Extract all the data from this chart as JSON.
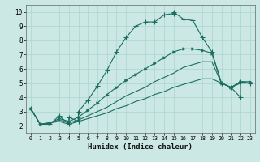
{
  "xlabel": "Humidex (Indice chaleur)",
  "xlim": [
    -0.5,
    23.5
  ],
  "ylim": [
    1.5,
    10.5
  ],
  "xticks": [
    0,
    1,
    2,
    3,
    4,
    5,
    6,
    7,
    8,
    9,
    10,
    11,
    12,
    13,
    14,
    15,
    16,
    17,
    18,
    19,
    20,
    21,
    22,
    23
  ],
  "yticks": [
    2,
    3,
    4,
    5,
    6,
    7,
    8,
    9,
    10
  ],
  "bg_color": "#cce8e4",
  "line_color": "#1a6e60",
  "grid_color": "#aad4ce",
  "line1_x": [
    0,
    1,
    2,
    3,
    4,
    4,
    5,
    5,
    6,
    7,
    8,
    9,
    10,
    11,
    12,
    13,
    14,
    15,
    15,
    16,
    17,
    18,
    19,
    20,
    21,
    22,
    22,
    23
  ],
  "line1_y": [
    3.2,
    2.1,
    2.1,
    2.7,
    2.1,
    2.6,
    2.3,
    3.0,
    3.8,
    4.8,
    5.9,
    7.2,
    8.2,
    9.0,
    9.3,
    9.3,
    9.8,
    9.9,
    10.0,
    9.5,
    9.4,
    8.2,
    7.2,
    5.0,
    4.7,
    4.0,
    5.1,
    5.0
  ],
  "line2_x": [
    0,
    1,
    2,
    3,
    4,
    5,
    6,
    7,
    8,
    9,
    10,
    11,
    12,
    13,
    14,
    15,
    16,
    17,
    18,
    19,
    20,
    21,
    22,
    23
  ],
  "line2_y": [
    3.2,
    2.1,
    2.2,
    2.5,
    2.3,
    2.6,
    3.1,
    3.6,
    4.2,
    4.7,
    5.2,
    5.6,
    6.0,
    6.4,
    6.8,
    7.2,
    7.4,
    7.4,
    7.3,
    7.1,
    5.0,
    4.7,
    5.1,
    5.1
  ],
  "line3_x": [
    0,
    1,
    2,
    3,
    4,
    5,
    6,
    7,
    8,
    9,
    10,
    11,
    12,
    13,
    14,
    15,
    16,
    17,
    18,
    19,
    20,
    21,
    22,
    23
  ],
  "line3_y": [
    3.2,
    2.1,
    2.2,
    2.4,
    2.2,
    2.4,
    2.7,
    3.0,
    3.3,
    3.7,
    4.1,
    4.4,
    4.7,
    5.1,
    5.4,
    5.7,
    6.1,
    6.3,
    6.5,
    6.5,
    5.0,
    4.7,
    5.0,
    5.0
  ],
  "line4_x": [
    0,
    1,
    2,
    3,
    4,
    5,
    6,
    7,
    8,
    9,
    10,
    11,
    12,
    13,
    14,
    15,
    16,
    17,
    18,
    19,
    20,
    21,
    22,
    23
  ],
  "line4_y": [
    3.2,
    2.1,
    2.2,
    2.3,
    2.1,
    2.3,
    2.5,
    2.7,
    2.9,
    3.2,
    3.4,
    3.7,
    3.9,
    4.2,
    4.4,
    4.7,
    4.9,
    5.1,
    5.3,
    5.3,
    5.0,
    4.7,
    5.0,
    5.0
  ]
}
